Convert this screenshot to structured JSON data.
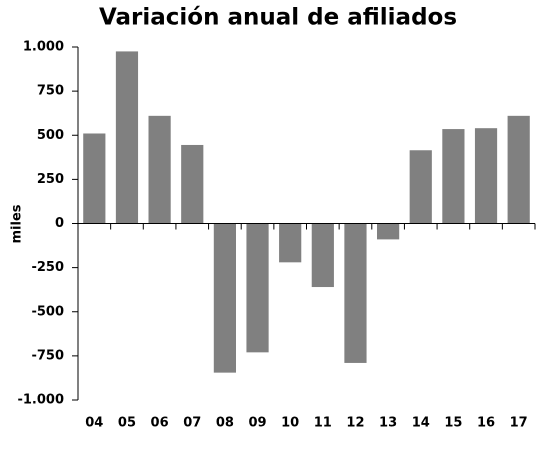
{
  "chart_data": {
    "type": "bar",
    "title": "Variación anual de afiliados",
    "y_label": "miles",
    "categories": [
      "04",
      "05",
      "06",
      "07",
      "08",
      "09",
      "10",
      "11",
      "12",
      "13",
      "14",
      "15",
      "16",
      "17"
    ],
    "values": [
      510,
      975,
      610,
      445,
      -845,
      -730,
      -220,
      -360,
      -790,
      -90,
      415,
      535,
      540,
      610
    ],
    "color": "#808080",
    "ylim": [
      -1000,
      1000
    ],
    "yticks": [
      {
        "value": -1000,
        "label": "-1.000"
      },
      -750,
      -500,
      -250,
      0,
      250,
      500,
      750,
      {
        "value": 1000,
        "label": "1.000"
      }
    ],
    "grid": false
  }
}
